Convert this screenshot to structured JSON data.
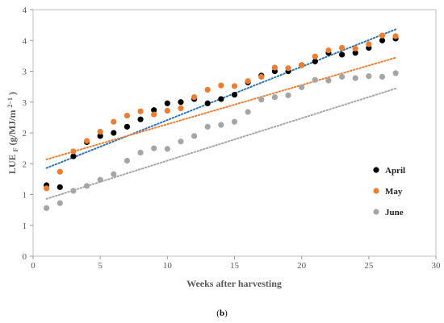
{
  "chart_data": {
    "type": "scatter",
    "xlabel": "Weeks after harvesting",
    "ylabel_main": "LUE",
    "ylabel_sub": "F",
    "ylabel_rest": "(g/MJ/m",
    "ylabel_sup": "2−1",
    "ylabel_close": ")",
    "xlim": [
      0,
      30
    ],
    "ylim": [
      0,
      4
    ],
    "xticks": [
      0,
      5,
      10,
      15,
      20,
      25,
      30
    ],
    "yticks": [
      0,
      0.5,
      1,
      1.5,
      2,
      2.5,
      3,
      3.5,
      4
    ],
    "yticklabels": [
      "0",
      "1",
      "1",
      "2",
      "2",
      "3",
      "3",
      "4",
      "4"
    ],
    "grid": false,
    "legend_position": "right",
    "series": [
      {
        "name": "April",
        "color": "#000000",
        "trend_color": "#2e75b6",
        "x": [
          1,
          2,
          3,
          4,
          5,
          6,
          7,
          8,
          9,
          10,
          11,
          12,
          13,
          14,
          15,
          16,
          17,
          18,
          19,
          20,
          21,
          22,
          23,
          24,
          25,
          26,
          27
        ],
        "y": [
          1.15,
          1.12,
          1.62,
          1.85,
          1.95,
          2.0,
          2.1,
          2.22,
          2.37,
          2.48,
          2.5,
          2.55,
          2.48,
          2.55,
          2.62,
          2.82,
          2.93,
          3.0,
          3.0,
          3.1,
          3.16,
          3.3,
          3.27,
          3.3,
          3.38,
          3.5,
          3.53
        ],
        "trend": [
          [
            1,
            1.43
          ],
          [
            27,
            3.68
          ]
        ]
      },
      {
        "name": "May",
        "color": "#ed7d31",
        "trend_color": "#ed7d31",
        "x": [
          1,
          2,
          3,
          4,
          5,
          6,
          7,
          8,
          9,
          10,
          11,
          12,
          13,
          14,
          15,
          16,
          17,
          18,
          19,
          20,
          21,
          22,
          23,
          24,
          25,
          26,
          27
        ],
        "y": [
          1.1,
          1.37,
          1.7,
          1.87,
          2.02,
          2.18,
          2.28,
          2.35,
          2.3,
          2.36,
          2.4,
          2.58,
          2.7,
          2.77,
          2.76,
          2.84,
          2.91,
          3.06,
          3.05,
          3.1,
          3.24,
          3.34,
          3.38,
          3.37,
          3.44,
          3.58,
          3.57
        ],
        "trend": [
          [
            1,
            1.57
          ],
          [
            27,
            3.22
          ]
        ]
      },
      {
        "name": "June",
        "color": "#a5a5a5",
        "trend_color": "#a5a5a5",
        "x": [
          1,
          2,
          3,
          4,
          5,
          6,
          7,
          8,
          9,
          10,
          11,
          12,
          13,
          14,
          15,
          16,
          17,
          18,
          19,
          20,
          21,
          22,
          23,
          24,
          25,
          26,
          27
        ],
        "y": [
          0.78,
          0.86,
          1.06,
          1.14,
          1.24,
          1.33,
          1.55,
          1.68,
          1.75,
          1.74,
          1.86,
          1.95,
          2.1,
          2.13,
          2.18,
          2.34,
          2.54,
          2.58,
          2.61,
          2.74,
          2.86,
          2.85,
          2.91,
          2.89,
          2.92,
          2.91,
          2.97
        ],
        "trend": [
          [
            1,
            0.93
          ],
          [
            27,
            2.72
          ]
        ]
      }
    ]
  },
  "figure": {
    "panel_open": "(",
    "panel_letter": "b",
    "panel_close": ")"
  }
}
